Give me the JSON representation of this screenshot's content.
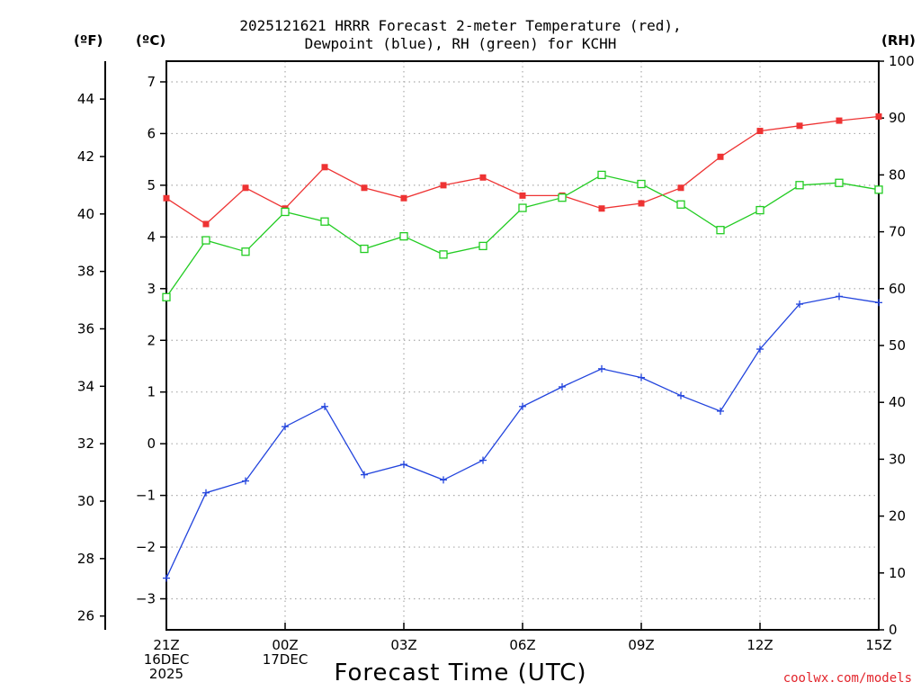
{
  "title": {
    "line1": "2025121621 HRRR Forecast 2-meter Temperature (red),",
    "line2": "Dewpoint (blue), RH (green) for KCHH"
  },
  "units": {
    "fahrenheit": "(ºF)",
    "celsius": "(ºC)",
    "rh": "(RH)"
  },
  "xlabel": "Forecast Time (UTC)",
  "credit": "coolwx.com/models",
  "colors": {
    "temperature": "#ee3333",
    "dewpoint": "#2244dd",
    "rh": "#22cc22",
    "grid": "#aaaaaa"
  },
  "chart_data": {
    "type": "line",
    "title": "2025121621 HRRR Forecast 2-meter Temperature (red), Dewpoint (blue), RH (green) for KCHH",
    "x": [
      0,
      1,
      2,
      3,
      4,
      5,
      6,
      7,
      8,
      9,
      10,
      11,
      12,
      13,
      14,
      15,
      16,
      17,
      18
    ],
    "x_ticks": [
      {
        "x": 0,
        "lines": [
          "21Z",
          "16DEC",
          "2025"
        ]
      },
      {
        "x": 3,
        "lines": [
          "00Z",
          "17DEC"
        ]
      },
      {
        "x": 6,
        "lines": [
          "03Z"
        ]
      },
      {
        "x": 9,
        "lines": [
          "06Z"
        ]
      },
      {
        "x": 12,
        "lines": [
          "09Z"
        ]
      },
      {
        "x": 15,
        "lines": [
          "12Z"
        ]
      },
      {
        "x": 18,
        "lines": [
          "15Z"
        ]
      }
    ],
    "xlim": [
      0,
      18
    ],
    "y_celsius": {
      "lim": [
        -3.6,
        7.4
      ],
      "ticks": [
        -3,
        -2,
        -1,
        0,
        1,
        2,
        3,
        4,
        5,
        6,
        7
      ]
    },
    "y_fahrenheit": {
      "ticks": [
        26,
        28,
        30,
        32,
        34,
        36,
        38,
        40,
        42,
        44
      ]
    },
    "y_rh": {
      "lim": [
        0,
        100
      ],
      "ticks": [
        0,
        10,
        20,
        30,
        40,
        50,
        60,
        70,
        80,
        90,
        100
      ]
    },
    "series": [
      {
        "name": "Temperature",
        "axis": "celsius",
        "marker": "filled-square",
        "values": [
          4.75,
          4.25,
          4.95,
          4.55,
          5.35,
          4.95,
          4.75,
          5.0,
          5.15,
          4.8,
          4.8,
          4.55,
          4.65,
          4.95,
          5.55,
          6.05,
          6.15,
          6.25,
          6.33
        ]
      },
      {
        "name": "Dewpoint",
        "axis": "celsius",
        "marker": "plus",
        "values": [
          -2.6,
          -0.95,
          -0.72,
          0.33,
          0.72,
          -0.6,
          -0.4,
          -0.7,
          -0.32,
          0.72,
          1.1,
          1.45,
          1.28,
          0.93,
          0.63,
          1.83,
          2.7,
          2.85,
          2.73
        ]
      },
      {
        "name": "RH",
        "axis": "rh",
        "marker": "open-square",
        "values": [
          58.5,
          68.5,
          66.5,
          73.5,
          71.8,
          67.0,
          69.2,
          66.0,
          67.5,
          74.2,
          76.0,
          80.0,
          78.4,
          74.8,
          70.3,
          73.8,
          78.2,
          78.6,
          77.4
        ]
      }
    ]
  }
}
